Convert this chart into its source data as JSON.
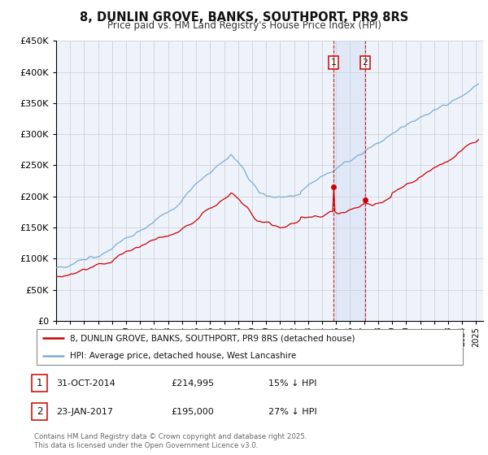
{
  "title": "8, DUNLIN GROVE, BANKS, SOUTHPORT, PR9 8RS",
  "subtitle": "Price paid vs. HM Land Registry's House Price Index (HPI)",
  "legend_line1": "8, DUNLIN GROVE, BANKS, SOUTHPORT, PR9 8RS (detached house)",
  "legend_line2": "HPI: Average price, detached house, West Lancashire",
  "footer": "Contains HM Land Registry data © Crown copyright and database right 2025.\nThis data is licensed under the Open Government Licence v3.0.",
  "transaction1_date": "31-OCT-2014",
  "transaction1_price": "£214,995",
  "transaction1_hpi": "15% ↓ HPI",
  "transaction2_date": "23-JAN-2017",
  "transaction2_price": "£195,000",
  "transaction2_hpi": "27% ↓ HPI",
  "vline1_x": 2014.83,
  "vline2_x": 2017.07,
  "marker1_y": 214995,
  "marker2_y": 195000,
  "ylim": [
    0,
    450000
  ],
  "xlim": [
    1995,
    2025.5
  ],
  "red_color": "#cc0000",
  "blue_color": "#7aadcf",
  "background_color": "#eef2fb",
  "grid_color": "#cccccc",
  "shaded_color": "#c8d8f0",
  "shaded_alpha": 0.35,
  "title_fontsize": 10.5,
  "subtitle_fontsize": 8.5
}
